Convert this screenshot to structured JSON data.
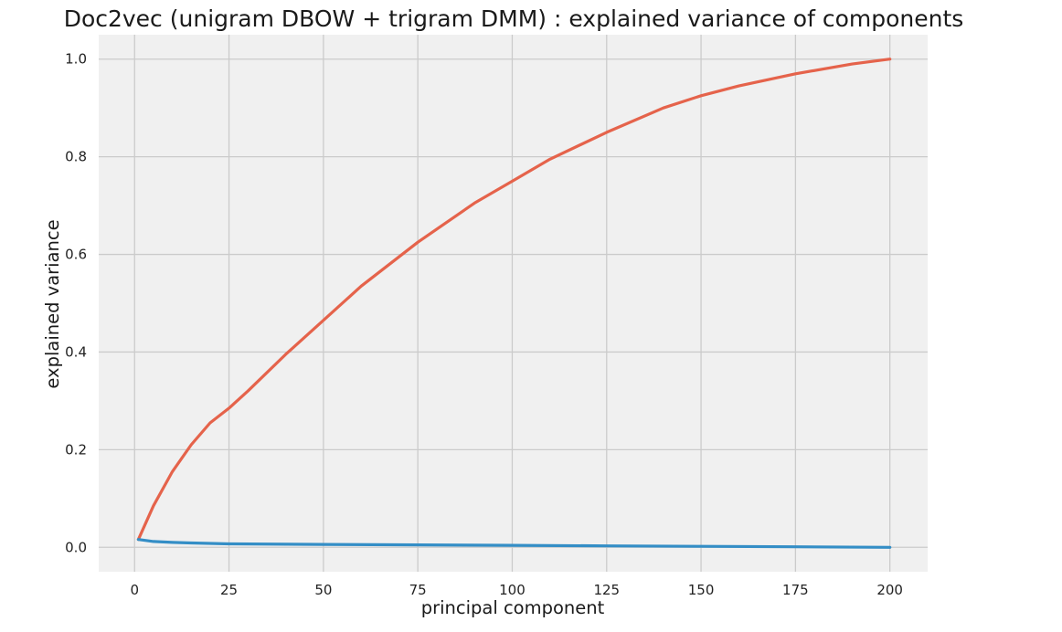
{
  "chart_data": {
    "type": "line",
    "title": "Doc2vec (unigram DBOW + trigram DMM) : explained variance of components",
    "xlabel": "principal component",
    "ylabel": "explained variance",
    "xlim": [
      -9.5,
      210
    ],
    "ylim": [
      -0.05,
      1.05
    ],
    "xticks": [
      0,
      25,
      50,
      75,
      100,
      125,
      150,
      175,
      200
    ],
    "yticks": [
      0.0,
      0.2,
      0.4,
      0.6,
      0.8,
      1.0
    ],
    "xtick_labels": [
      "0",
      "25",
      "50",
      "75",
      "100",
      "125",
      "150",
      "175",
      "200"
    ],
    "ytick_labels": [
      "0.0",
      "0.2",
      "0.4",
      "0.6",
      "0.8",
      "1.0"
    ],
    "grid": true,
    "background": "#f0f0f0",
    "series": [
      {
        "color": "#e5634b",
        "x": [
          1,
          5,
          10,
          15,
          20,
          25,
          30,
          40,
          50,
          60,
          75,
          90,
          100,
          110,
          125,
          140,
          150,
          160,
          175,
          190,
          200
        ],
        "y": [
          0.016,
          0.085,
          0.155,
          0.21,
          0.255,
          0.285,
          0.32,
          0.395,
          0.465,
          0.535,
          0.625,
          0.705,
          0.75,
          0.795,
          0.85,
          0.9,
          0.925,
          0.945,
          0.97,
          0.99,
          1.0
        ]
      },
      {
        "color": "#348ec6",
        "x": [
          1,
          3,
          5,
          10,
          15,
          20,
          25,
          50,
          75,
          100,
          125,
          150,
          175,
          200
        ],
        "y": [
          0.016,
          0.014,
          0.012,
          0.01,
          0.009,
          0.008,
          0.007,
          0.006,
          0.005,
          0.004,
          0.003,
          0.002,
          0.001,
          0.0
        ]
      }
    ]
  }
}
